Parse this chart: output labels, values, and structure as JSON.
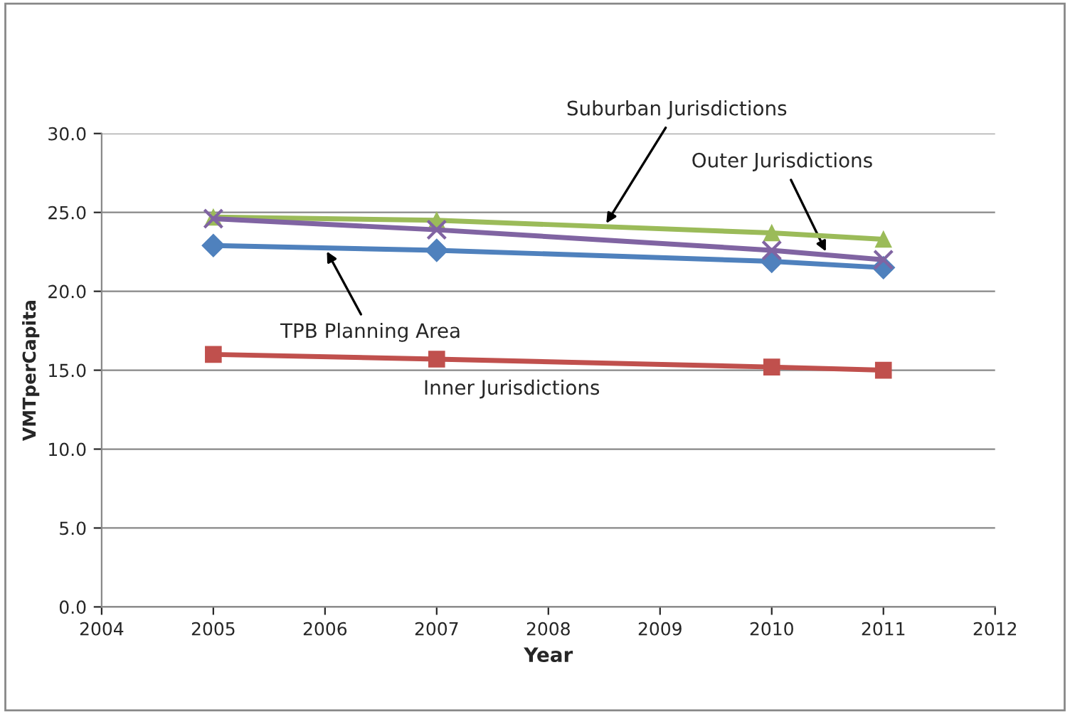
{
  "chart_data": {
    "type": "line",
    "xlabel": "Year",
    "ylabel": "VMTperCapita",
    "x": [
      2005,
      2007,
      2010,
      2011
    ],
    "series": [
      {
        "name": "Suburban Jurisdictions",
        "color": "#9bbb59",
        "marker": "triangle",
        "values": [
          24.7,
          24.5,
          23.7,
          23.3
        ]
      },
      {
        "name": "Outer Jurisdictions",
        "color": "#8064a2",
        "marker": "cross",
        "values": [
          24.6,
          23.9,
          22.6,
          22.0
        ]
      },
      {
        "name": "TPB Planning Area",
        "color": "#4f81bd",
        "marker": "diamond",
        "values": [
          22.9,
          22.6,
          21.9,
          21.5
        ]
      },
      {
        "name": "Inner Jurisdictions",
        "color": "#c0504d",
        "marker": "square",
        "values": [
          16.0,
          15.7,
          15.2,
          15.0
        ]
      }
    ],
    "xlim": [
      2004,
      2012
    ],
    "xticks": [
      2004,
      2005,
      2006,
      2007,
      2008,
      2009,
      2010,
      2011,
      2012
    ],
    "ylim": [
      0,
      30
    ],
    "yticks": [
      {
        "value": 0,
        "label": "0.0"
      },
      {
        "value": 5,
        "label": "5.0"
      },
      {
        "value": 10,
        "label": "10.0"
      },
      {
        "value": 15,
        "label": "15.0"
      },
      {
        "value": 20,
        "label": "20.0"
      },
      {
        "value": 25,
        "label": "25.0"
      },
      {
        "value": 30,
        "label": "30.0"
      }
    ],
    "grid": "y",
    "legend": false
  }
}
